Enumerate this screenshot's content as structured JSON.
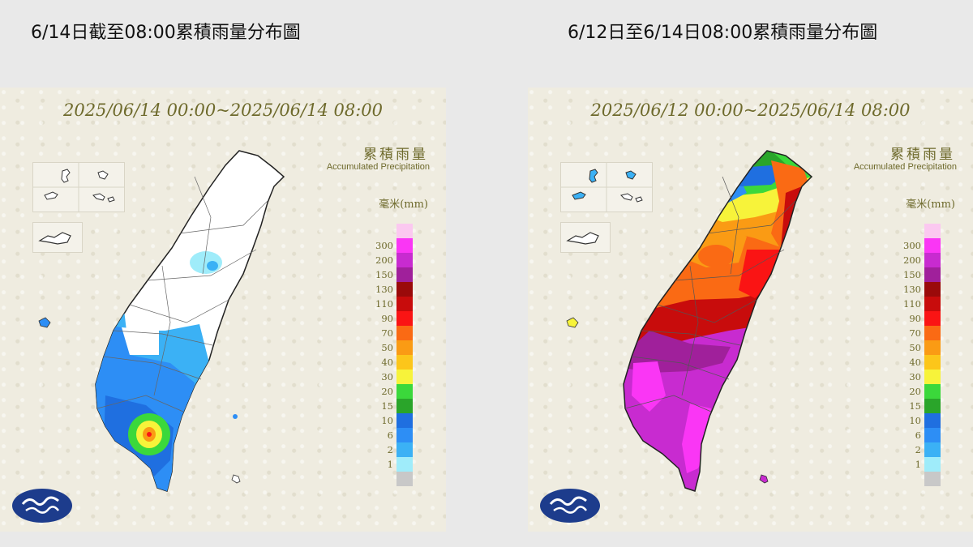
{
  "headings": {
    "left": "6/14日截至08:00累積雨量分布圖",
    "right": "6/12日至6/14日08:00累積雨量分布圖"
  },
  "maps": [
    {
      "period": "2025/06/14 00:00~2025/06/14 08:00",
      "legend_title": "累積雨量",
      "legend_subtitle": "Accumulated Precipitation",
      "unit": "毫米(mm)"
    },
    {
      "period": "2025/06/12 00:00~2025/06/14 08:00",
      "legend_title": "累積雨量",
      "legend_subtitle": "Accumulated Precipitation",
      "unit": "毫米(mm)"
    }
  ],
  "scale": [
    {
      "label": "",
      "color": "#fbc8f0"
    },
    {
      "label": "300",
      "color": "#fa36f5"
    },
    {
      "label": "200",
      "color": "#c82bd0"
    },
    {
      "label": "150",
      "color": "#a0209b"
    },
    {
      "label": "130",
      "color": "#9a0a0a"
    },
    {
      "label": "110",
      "color": "#c80c0c"
    },
    {
      "label": "90",
      "color": "#fa1414"
    },
    {
      "label": "70",
      "color": "#fa6a14"
    },
    {
      "label": "50",
      "color": "#fa9b14"
    },
    {
      "label": "40",
      "color": "#fcc61a"
    },
    {
      "label": "30",
      "color": "#f7f33a"
    },
    {
      "label": "20",
      "color": "#3bd83b"
    },
    {
      "label": "15",
      "color": "#2aa52a"
    },
    {
      "label": "10",
      "color": "#1f6fe0"
    },
    {
      "label": "6",
      "color": "#2d8ef5"
    },
    {
      "label": "2",
      "color": "#3bb1f5"
    },
    {
      "label": "1",
      "color": "#9fecfa"
    },
    {
      "label": "",
      "color": "#c8c8c8"
    }
  ]
}
